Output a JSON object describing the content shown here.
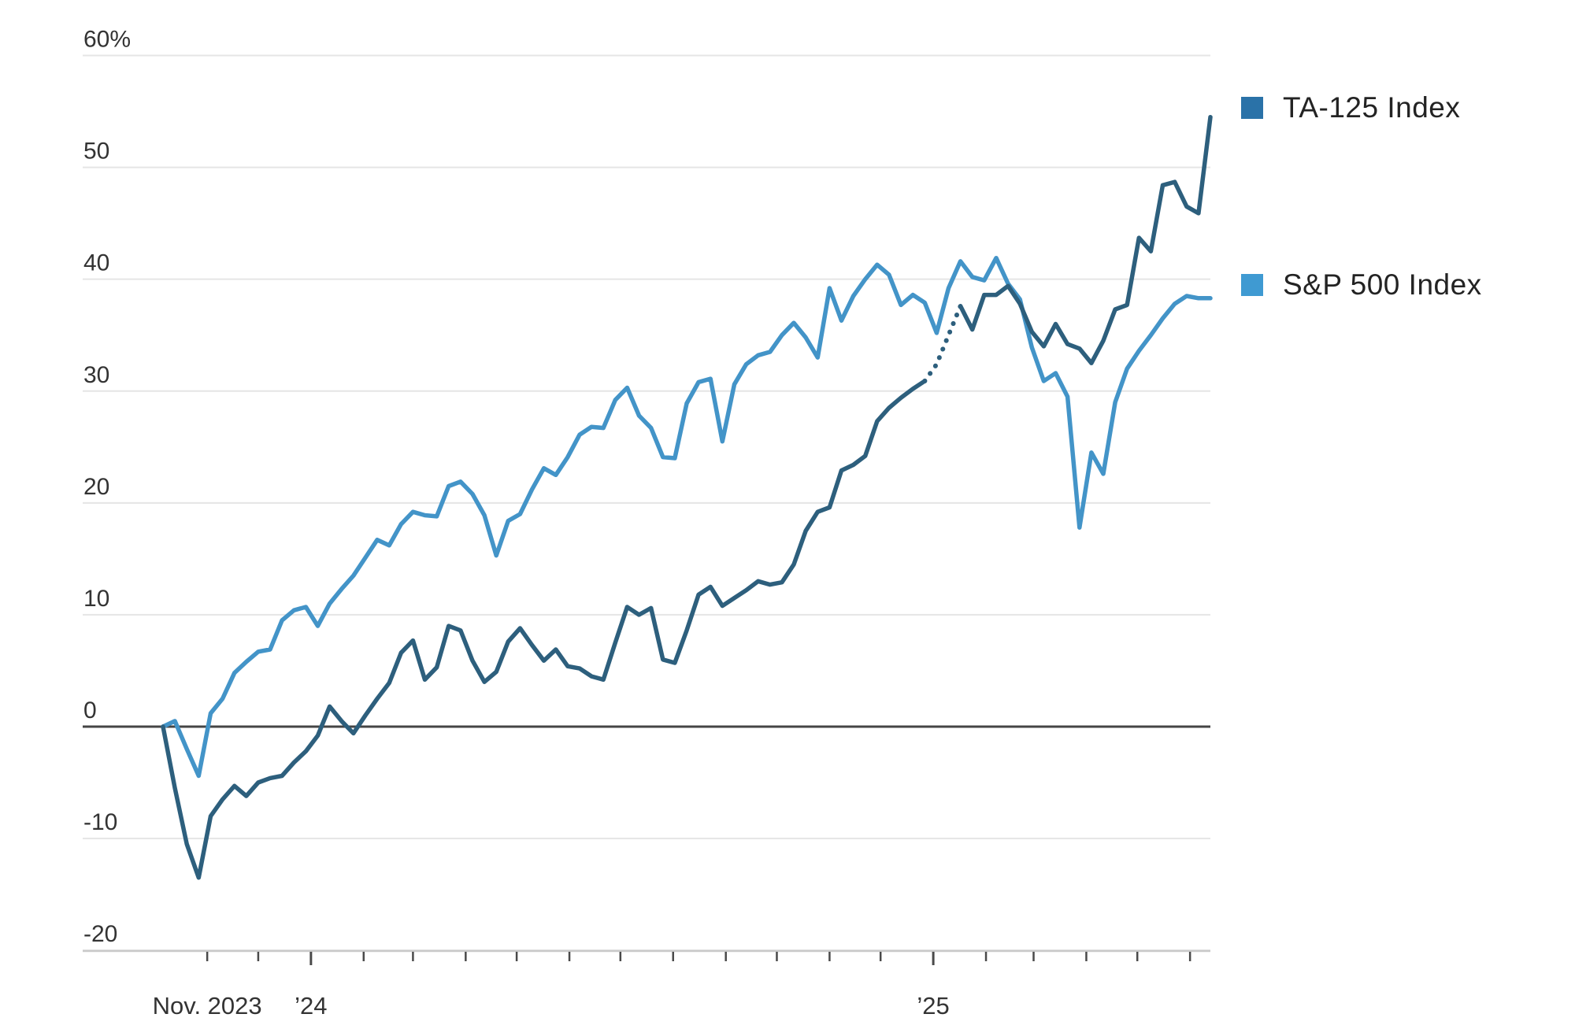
{
  "chart_data": {
    "type": "line",
    "title": "",
    "subtitle": "",
    "grid": true,
    "legend_position": "right",
    "y_axis": {
      "unit": "%",
      "min": -20,
      "max": 60,
      "ticks": [
        {
          "value": 60,
          "label": "60%"
        },
        {
          "value": 50,
          "label": "50"
        },
        {
          "value": 40,
          "label": "40"
        },
        {
          "value": 30,
          "label": "30"
        },
        {
          "value": 20,
          "label": "20"
        },
        {
          "value": 10,
          "label": "10"
        },
        {
          "value": 0,
          "label": "0"
        },
        {
          "value": -10,
          "label": "-10"
        },
        {
          "value": -20,
          "label": "-20"
        }
      ],
      "zero_line": true
    },
    "x_axis": {
      "months_shown": 20,
      "tick_labels": [
        {
          "text": "Nov. 2023",
          "month_index": 0
        },
        {
          "text": "’24",
          "month_index": 2
        },
        {
          "text": "’25",
          "month_index": 14
        }
      ]
    },
    "colors": {
      "grid": "#e5e5e5",
      "zero_line": "#454545",
      "axis_baseline": "#c9c9c9",
      "tick_mark": "#4a4a4a",
      "axis_label": "#333333",
      "legend_text": "#232323"
    },
    "series": [
      {
        "id": "ta125",
        "name": "TA-125 Index",
        "line_color": "#2d5f7d",
        "swatch_color": "#2a72a8",
        "dotted_segment_weeks": [
          64,
          67
        ],
        "values": [
          0,
          -5.5,
          -10.5,
          -13.5,
          -8.0,
          -6.5,
          -5.3,
          -6.2,
          -5.0,
          -4.6,
          -4.4,
          -3.2,
          -2.2,
          -0.8,
          1.8,
          0.5,
          -0.6,
          1.0,
          2.5,
          3.9,
          6.6,
          7.7,
          4.2,
          5.3,
          9.0,
          8.6,
          5.9,
          4.0,
          4.9,
          7.6,
          8.8,
          7.3,
          5.9,
          6.9,
          5.4,
          5.2,
          4.5,
          4.2,
          7.5,
          10.7,
          10.0,
          10.6,
          6.0,
          5.7,
          8.6,
          11.8,
          12.5,
          10.8,
          11.5,
          12.2,
          13.0,
          12.7,
          12.9,
          14.5,
          17.5,
          19.2,
          19.6,
          22.9,
          23.4,
          24.2,
          27.3,
          28.5,
          29.4,
          30.2,
          30.9,
          32.4,
          35.0,
          37.6,
          35.5,
          38.6,
          38.6,
          39.4,
          37.8,
          35.3,
          34.0,
          36.0,
          34.2,
          33.8,
          32.5,
          34.5,
          37.3,
          37.7,
          43.7,
          42.5,
          48.4,
          48.7,
          46.5,
          45.9,
          54.5
        ]
      },
      {
        "id": "sp500",
        "name": "S&P 500 Index",
        "line_color": "#4394c8",
        "swatch_color": "#3f9ad2",
        "dotted_segment_weeks": null,
        "values": [
          0,
          0.5,
          -2.0,
          -4.4,
          1.2,
          2.5,
          4.8,
          5.8,
          6.7,
          6.9,
          9.5,
          10.4,
          10.7,
          9.0,
          11.0,
          12.3,
          13.5,
          15.1,
          16.7,
          16.2,
          18.1,
          19.2,
          18.9,
          18.8,
          21.5,
          21.9,
          20.8,
          18.9,
          15.3,
          18.4,
          19.0,
          21.2,
          23.1,
          22.5,
          24.1,
          26.1,
          26.8,
          26.7,
          29.2,
          30.3,
          27.8,
          26.7,
          24.1,
          24.0,
          28.9,
          30.8,
          31.1,
          25.5,
          30.6,
          32.4,
          33.2,
          33.5,
          35.0,
          36.1,
          34.8,
          33.0,
          39.2,
          36.3,
          38.5,
          40.0,
          41.3,
          40.4,
          37.7,
          38.6,
          37.9,
          35.2,
          39.2,
          41.6,
          40.2,
          39.9,
          41.9,
          39.6,
          38.2,
          33.9,
          30.9,
          31.6,
          29.5,
          17.8,
          24.5,
          22.6,
          29.0,
          32.0,
          33.6,
          35.0,
          36.5,
          37.8,
          38.5,
          38.3,
          38.3
        ]
      }
    ]
  }
}
